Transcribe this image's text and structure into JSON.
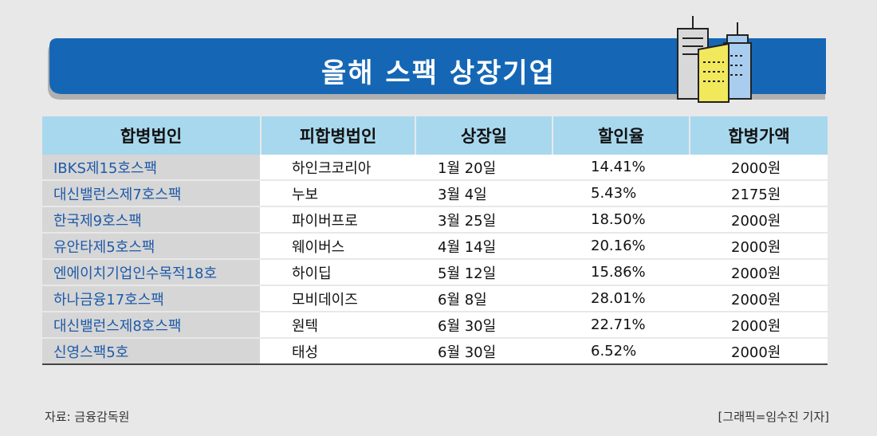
{
  "title": "올해 스팩 상장기업",
  "colors": {
    "banner": "#1567b6",
    "header_bg": "#a8d8ee",
    "first_col_bg": "#d6d6d6",
    "first_col_text": "#1e5aa8"
  },
  "icon": "buildings-icon",
  "chart_data": {
    "type": "table",
    "title": "올해 스팩 상장기업",
    "columns": [
      "합병법인",
      "피합병법인",
      "상장일",
      "할인율",
      "합병가액"
    ],
    "rows": [
      [
        "IBKS제15호스팩",
        "하인크코리아",
        "1월 20일",
        "14.41%",
        "2000원"
      ],
      [
        "대신밸런스제7호스팩",
        "누보",
        "3월 4일",
        "5.43%",
        "2175원"
      ],
      [
        "한국제9호스팩",
        "파이버프로",
        "3월 25일",
        "18.50%",
        "2000원"
      ],
      [
        "유안타제5호스팩",
        "웨이버스",
        "4월 14일",
        "20.16%",
        "2000원"
      ],
      [
        "엔에이치기업인수목적18호",
        "하이딥",
        "5월 12일",
        "15.86%",
        "2000원"
      ],
      [
        "하나금융17호스팩",
        "모비데이즈",
        "6월 8일",
        "28.01%",
        "2000원"
      ],
      [
        "대신밸런스제8호스팩",
        "원텍",
        "6월 30일",
        "22.71%",
        "2000원"
      ],
      [
        "신영스팩5호",
        "태성",
        "6월 30일",
        "6.52%",
        "2000원"
      ]
    ]
  },
  "source": "자료: 금융감독원",
  "credit": "[그래픽=임수진 기자]"
}
